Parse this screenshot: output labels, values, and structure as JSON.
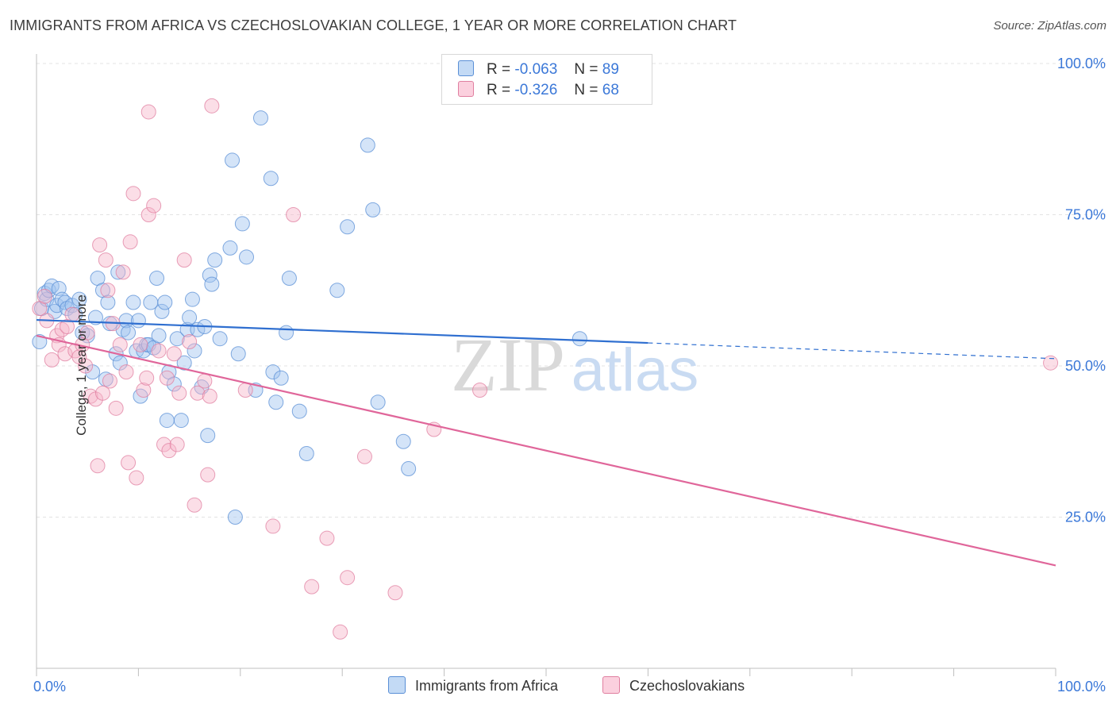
{
  "title": "IMMIGRANTS FROM AFRICA VS CZECHOSLOVAKIAN COLLEGE, 1 YEAR OR MORE CORRELATION CHART",
  "source": "Source: ZipAtlas.com",
  "watermark": {
    "zip": "ZIP",
    "atlas": "atlas"
  },
  "legend": {
    "r_label": "R =",
    "n_label": "N =",
    "series": [
      {
        "r": "-0.063",
        "n": "89",
        "color": "#9fc4ef",
        "edge": "#5a8fd6"
      },
      {
        "r": "-0.326",
        "n": "68",
        "color": "#f6b6ca",
        "edge": "#e07fa0"
      }
    ]
  },
  "bottom_legend": [
    "Immigrants from Africa",
    "Czechoslovakians"
  ],
  "chart_data": {
    "type": "scatter",
    "title": "IMMIGRANTS FROM AFRICA VS CZECHOSLOVAKIAN COLLEGE, 1 YEAR OR MORE CORRELATION CHART",
    "xlabel": "",
    "ylabel": "College, 1 year or more",
    "xlim": [
      0,
      100
    ],
    "ylim": [
      0,
      100
    ],
    "x_tick_labels": [
      "0.0%",
      "100.0%"
    ],
    "y_tick_labels": [
      "100.0%",
      "75.0%",
      "50.0%",
      "25.0%"
    ],
    "y_ticks": [
      100,
      75,
      50,
      25
    ],
    "grid": "horizontal dashed",
    "legend_position": "top-center",
    "series": [
      {
        "name": "Immigrants from Africa",
        "color": "#9fc4ef",
        "edge": "#5a8fd6",
        "trend": {
          "x0": 0,
          "y0": 57.6,
          "x1": 60,
          "y1": 53.8,
          "x_end": 100,
          "y_end": 51.2,
          "color": "#2f6fd0"
        },
        "points": [
          [
            0.3,
            54.0
          ],
          [
            0.5,
            59.5
          ],
          [
            0.8,
            62.0
          ],
          [
            1.0,
            61.0
          ],
          [
            1.2,
            62.5
          ],
          [
            1.5,
            63.2
          ],
          [
            1.8,
            59.0
          ],
          [
            2.0,
            60.0
          ],
          [
            2.2,
            62.8
          ],
          [
            2.5,
            61.0
          ],
          [
            2.8,
            60.5
          ],
          [
            3.0,
            59.5
          ],
          [
            3.5,
            60.0
          ],
          [
            3.8,
            58.5
          ],
          [
            4.2,
            61.0
          ],
          [
            4.5,
            55.5
          ],
          [
            5.0,
            55.0
          ],
          [
            5.5,
            49.0
          ],
          [
            5.8,
            58.0
          ],
          [
            6.0,
            64.5
          ],
          [
            6.5,
            62.5
          ],
          [
            6.8,
            47.8
          ],
          [
            7.0,
            60.5
          ],
          [
            7.2,
            57.0
          ],
          [
            7.8,
            52.0
          ],
          [
            8.0,
            65.5
          ],
          [
            8.2,
            50.5
          ],
          [
            8.5,
            56.0
          ],
          [
            8.8,
            57.5
          ],
          [
            9.0,
            55.5
          ],
          [
            9.5,
            60.5
          ],
          [
            9.8,
            52.5
          ],
          [
            10.0,
            57.5
          ],
          [
            10.2,
            45.0
          ],
          [
            10.5,
            52.5
          ],
          [
            10.8,
            53.5
          ],
          [
            11.0,
            53.5
          ],
          [
            11.2,
            60.5
          ],
          [
            11.5,
            53.0
          ],
          [
            11.8,
            64.5
          ],
          [
            12.0,
            55.0
          ],
          [
            12.3,
            59.0
          ],
          [
            12.6,
            60.5
          ],
          [
            12.8,
            41.0
          ],
          [
            13.0,
            49.0
          ],
          [
            13.5,
            47.0
          ],
          [
            13.8,
            54.5
          ],
          [
            14.2,
            41.0
          ],
          [
            14.5,
            50.5
          ],
          [
            14.8,
            56.0
          ],
          [
            15.0,
            58.0
          ],
          [
            15.3,
            61.0
          ],
          [
            15.5,
            52.5
          ],
          [
            15.8,
            56.0
          ],
          [
            16.2,
            46.5
          ],
          [
            16.5,
            56.5
          ],
          [
            16.8,
            38.5
          ],
          [
            17.0,
            65.0
          ],
          [
            17.2,
            63.5
          ],
          [
            17.5,
            67.5
          ],
          [
            18.0,
            54.5
          ],
          [
            19.0,
            69.5
          ],
          [
            19.2,
            84.0
          ],
          [
            19.5,
            25.0
          ],
          [
            19.8,
            52.0
          ],
          [
            20.2,
            73.5
          ],
          [
            20.6,
            68.0
          ],
          [
            21.5,
            46.0
          ],
          [
            22.0,
            91.0
          ],
          [
            23.0,
            81.0
          ],
          [
            23.2,
            49.0
          ],
          [
            23.5,
            44.0
          ],
          [
            24.0,
            48.0
          ],
          [
            24.5,
            55.5
          ],
          [
            24.8,
            64.5
          ],
          [
            25.8,
            42.5
          ],
          [
            26.5,
            35.5
          ],
          [
            29.5,
            62.5
          ],
          [
            30.5,
            73.0
          ],
          [
            32.5,
            86.5
          ],
          [
            33.0,
            75.8
          ],
          [
            33.5,
            44.0
          ],
          [
            36.0,
            37.5
          ],
          [
            36.5,
            33.0
          ],
          [
            53.3,
            54.5
          ]
        ]
      },
      {
        "name": "Czechoslovakians",
        "color": "#f6b6ca",
        "edge": "#e07fa0",
        "trend": {
          "x0": 0,
          "y0": 55.0,
          "x1": 100,
          "y1": 17.0,
          "color": "#e0669a"
        },
        "points": [
          [
            0.3,
            59.5
          ],
          [
            0.8,
            61.5
          ],
          [
            1.0,
            57.5
          ],
          [
            1.5,
            51.0
          ],
          [
            2.0,
            55.0
          ],
          [
            2.2,
            53.5
          ],
          [
            2.5,
            56.0
          ],
          [
            2.8,
            52.0
          ],
          [
            3.0,
            56.5
          ],
          [
            3.5,
            58.5
          ],
          [
            3.8,
            52.5
          ],
          [
            4.2,
            51.5
          ],
          [
            4.5,
            53.5
          ],
          [
            4.8,
            50.0
          ],
          [
            5.0,
            55.5
          ],
          [
            5.3,
            45.0
          ],
          [
            5.8,
            44.5
          ],
          [
            6.0,
            33.5
          ],
          [
            6.2,
            70.0
          ],
          [
            6.5,
            45.5
          ],
          [
            6.8,
            67.5
          ],
          [
            7.0,
            62.5
          ],
          [
            7.2,
            47.5
          ],
          [
            7.5,
            57.0
          ],
          [
            7.8,
            43.0
          ],
          [
            8.2,
            53.5
          ],
          [
            8.5,
            65.5
          ],
          [
            8.8,
            49.0
          ],
          [
            9.0,
            34.0
          ],
          [
            9.2,
            70.5
          ],
          [
            9.5,
            78.5
          ],
          [
            9.8,
            31.5
          ],
          [
            10.2,
            53.5
          ],
          [
            10.5,
            46.0
          ],
          [
            10.8,
            48.0
          ],
          [
            11.0,
            92.0
          ],
          [
            11.0,
            75.0
          ],
          [
            11.5,
            76.5
          ],
          [
            12.0,
            52.5
          ],
          [
            12.5,
            37.0
          ],
          [
            12.8,
            48.0
          ],
          [
            13.0,
            36.0
          ],
          [
            13.5,
            52.0
          ],
          [
            13.8,
            37.0
          ],
          [
            14.0,
            45.5
          ],
          [
            14.5,
            67.5
          ],
          [
            15.0,
            54.0
          ],
          [
            15.5,
            27.0
          ],
          [
            15.8,
            45.5
          ],
          [
            16.5,
            47.5
          ],
          [
            16.8,
            32.0
          ],
          [
            17.0,
            45.0
          ],
          [
            17.2,
            93.0
          ],
          [
            20.5,
            46.0
          ],
          [
            23.2,
            23.5
          ],
          [
            25.2,
            75.0
          ],
          [
            27.0,
            13.5
          ],
          [
            28.5,
            21.5
          ],
          [
            29.8,
            6.0
          ],
          [
            30.5,
            15.0
          ],
          [
            32.2,
            35.0
          ],
          [
            35.2,
            12.5
          ],
          [
            39.0,
            39.5
          ],
          [
            43.5,
            46.0
          ],
          [
            99.5,
            50.5
          ]
        ]
      }
    ]
  }
}
